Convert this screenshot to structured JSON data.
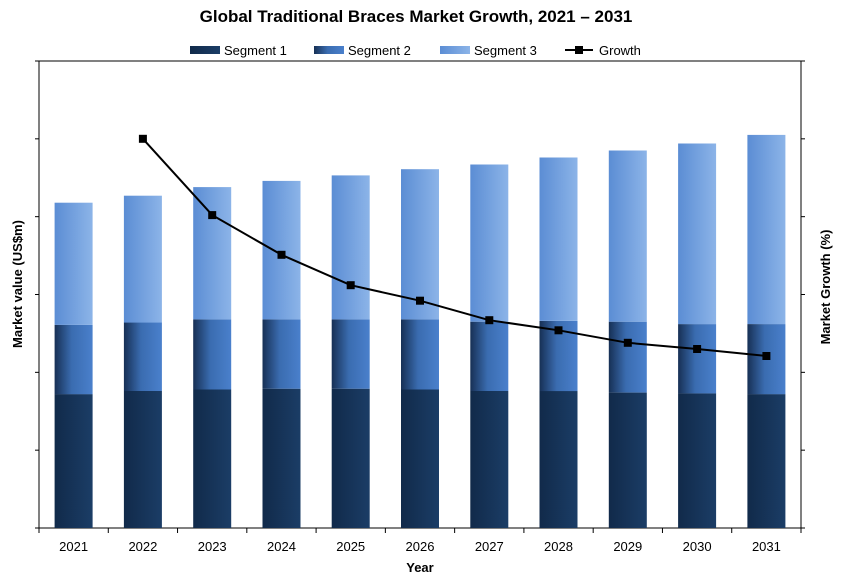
{
  "chart_data": {
    "type": "bar",
    "stacked": true,
    "title": "Global Traditional Braces Market Growth, 2021 – 2031",
    "xlabel": "Year",
    "ylabel": "Market value (US$m)",
    "y2label": "Market Growth (%)",
    "categories": [
      "2021",
      "2022",
      "2023",
      "2024",
      "2025",
      "2026",
      "2027",
      "2028",
      "2029",
      "2030",
      "2031"
    ],
    "ylim": [
      0,
      6
    ],
    "y2lim": [
      0,
      6
    ],
    "grid": false,
    "legend_position": "top-center",
    "series": [
      {
        "name": "Segment 1",
        "kind": "bar",
        "color": "#17375e",
        "values": [
          1.72,
          1.76,
          1.78,
          1.79,
          1.79,
          1.78,
          1.76,
          1.76,
          1.74,
          1.73,
          1.72
        ]
      },
      {
        "name": "Segment 2",
        "kind": "bar",
        "color": "#2f5f9e",
        "values": [
          0.89,
          0.88,
          0.9,
          0.89,
          0.89,
          0.9,
          0.89,
          0.9,
          0.91,
          0.89,
          0.9
        ]
      },
      {
        "name": "Segment 3",
        "kind": "bar",
        "color": "#6f9fdb",
        "values": [
          1.57,
          1.63,
          1.7,
          1.78,
          1.85,
          1.93,
          2.02,
          2.1,
          2.2,
          2.32,
          2.43
        ]
      },
      {
        "name": "Growth",
        "kind": "line",
        "axis": "right",
        "color": "#000000",
        "values": [
          null,
          5.0,
          4.02,
          3.51,
          3.12,
          2.92,
          2.67,
          2.54,
          2.38,
          2.3,
          2.21
        ]
      }
    ]
  }
}
